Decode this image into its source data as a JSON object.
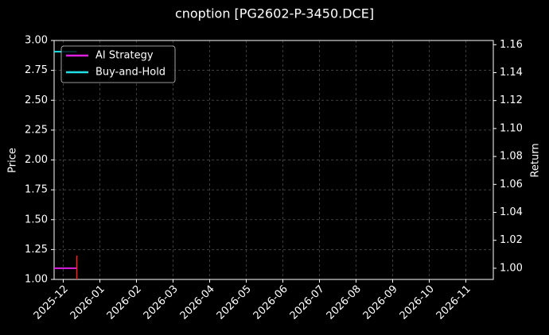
{
  "chart_data": {
    "type": "line",
    "title": "cnoption [PG2602-P-3450.DCE]",
    "y_label": "Price",
    "y2_label": "Return",
    "xlim": [
      -0.25,
      11.75
    ],
    "xticks": [
      {
        "value": 0,
        "label": "2025-12"
      },
      {
        "value": 1,
        "label": "2026-01"
      },
      {
        "value": 2,
        "label": "2026-02"
      },
      {
        "value": 3,
        "label": "2026-03"
      },
      {
        "value": 4,
        "label": "2026-04"
      },
      {
        "value": 5,
        "label": "2026-05"
      },
      {
        "value": 6,
        "label": "2026-06"
      },
      {
        "value": 7,
        "label": "2026-07"
      },
      {
        "value": 8,
        "label": "2026-08"
      },
      {
        "value": 9,
        "label": "2026-09"
      },
      {
        "value": 10,
        "label": "2026-10"
      },
      {
        "value": 11,
        "label": "2026-11"
      }
    ],
    "ylim": [
      1.0,
      3.0
    ],
    "yticks": [
      {
        "value": 1.0,
        "label": "1.00"
      },
      {
        "value": 1.25,
        "label": "1.25"
      },
      {
        "value": 1.5,
        "label": "1.50"
      },
      {
        "value": 1.75,
        "label": "1.75"
      },
      {
        "value": 2.0,
        "label": "2.00"
      },
      {
        "value": 2.25,
        "label": "2.25"
      },
      {
        "value": 2.5,
        "label": "2.50"
      },
      {
        "value": 2.75,
        "label": "2.75"
      },
      {
        "value": 3.0,
        "label": "3.00"
      }
    ],
    "y2lim": [
      0.992,
      1.163
    ],
    "y2ticks": [
      {
        "value": 1.0,
        "label": "1.00"
      },
      {
        "value": 1.02,
        "label": "1.02"
      },
      {
        "value": 1.04,
        "label": "1.04"
      },
      {
        "value": 1.06,
        "label": "1.06"
      },
      {
        "value": 1.08,
        "label": "1.08"
      },
      {
        "value": 1.1,
        "label": "1.10"
      },
      {
        "value": 1.12,
        "label": "1.12"
      },
      {
        "value": 1.14,
        "label": "1.14"
      },
      {
        "value": 1.16,
        "label": "1.16"
      }
    ],
    "grid": true,
    "legend": "upper left",
    "series": [
      {
        "name": "AI Strategy",
        "color": "#e020e0",
        "axis": "y2",
        "x": [
          -0.25,
          0.37
        ],
        "values": [
          1.0,
          1.0
        ]
      },
      {
        "name": "Buy-and-Hold",
        "color": "#20e0e8",
        "axis": "y2",
        "x": [
          -0.25,
          0.37
        ],
        "values": [
          1.155,
          1.155
        ]
      }
    ],
    "signal": {
      "color": "#ff2020",
      "x": [
        0.37,
        0.37
      ],
      "values": [
        1.0,
        1.2
      ]
    }
  }
}
